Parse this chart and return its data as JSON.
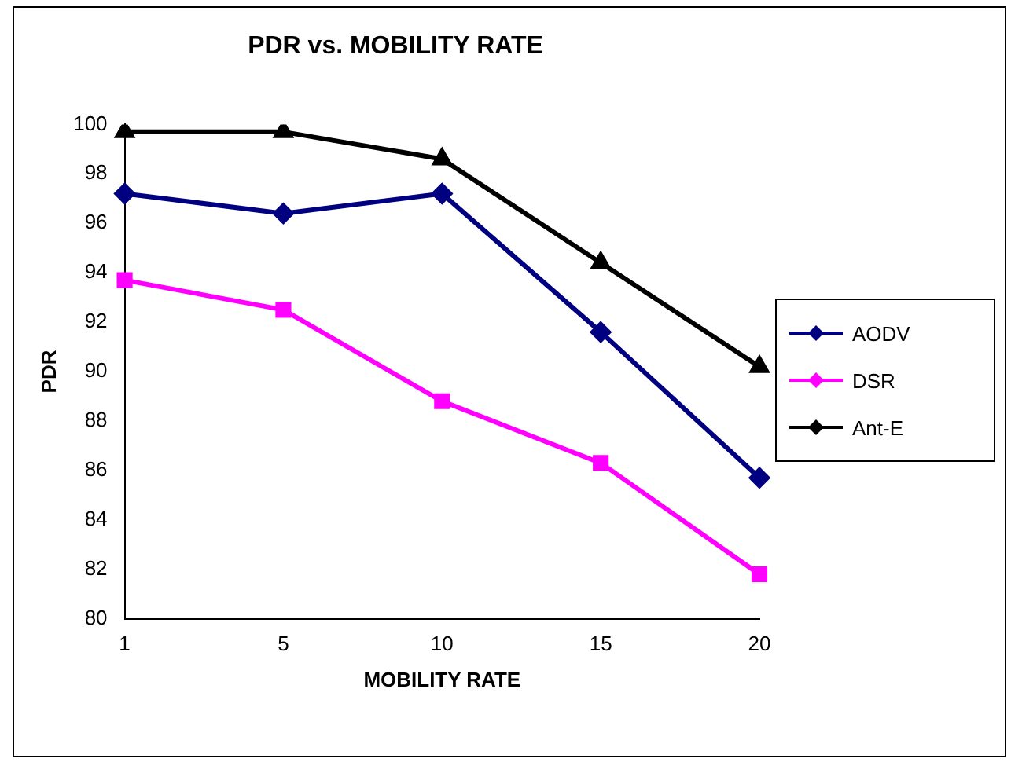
{
  "chart_data": {
    "type": "line",
    "title": "PDR vs. MOBILITY RATE",
    "xlabel": "MOBILITY RATE",
    "ylabel": "PDR",
    "categories": [
      "1",
      "5",
      "10",
      "15",
      "20"
    ],
    "series": [
      {
        "name": "AODV",
        "color": "#000080",
        "marker": "diamond",
        "values": [
          97.2,
          96.4,
          97.2,
          91.6,
          85.7
        ]
      },
      {
        "name": "DSR",
        "color": "#ff00ff",
        "marker": "square",
        "values": [
          93.7,
          92.5,
          88.8,
          86.3,
          81.8
        ]
      },
      {
        "name": "Ant-E",
        "color": "#000000",
        "marker": "triangle",
        "values": [
          99.7,
          99.7,
          98.6,
          94.4,
          90.2
        ]
      }
    ],
    "ylim": [
      80,
      100
    ],
    "yticks": [
      80,
      82,
      84,
      86,
      88,
      90,
      92,
      94,
      96,
      98,
      100
    ],
    "grid": false,
    "legend": "right"
  }
}
